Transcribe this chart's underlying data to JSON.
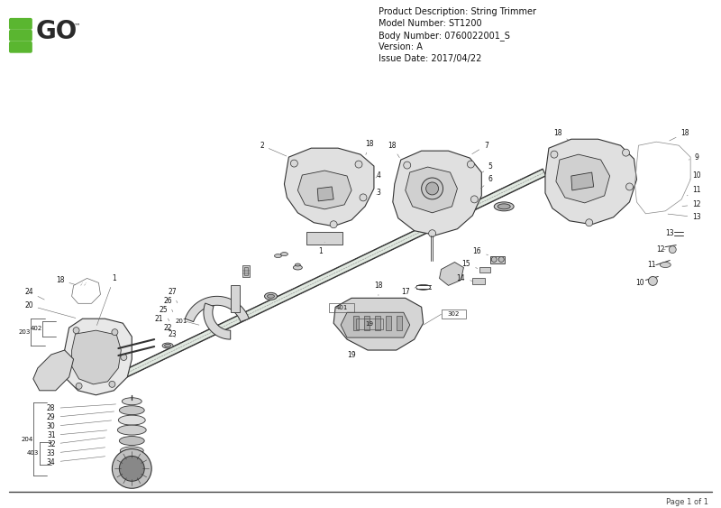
{
  "bg_color": "#ffffff",
  "logo_green": "#5ab630",
  "logo_dark": "#2a2a2a",
  "header_lines": [
    "Product Description: String Trimmer",
    "Model Number: ST1200",
    "Body Number: 0760022001_S",
    "Version: A",
    "Issue Date: 2017/04/22"
  ],
  "footer_text": "Page 1 of 1",
  "dc": "#333333",
  "fig_width": 8.0,
  "fig_height": 5.63
}
